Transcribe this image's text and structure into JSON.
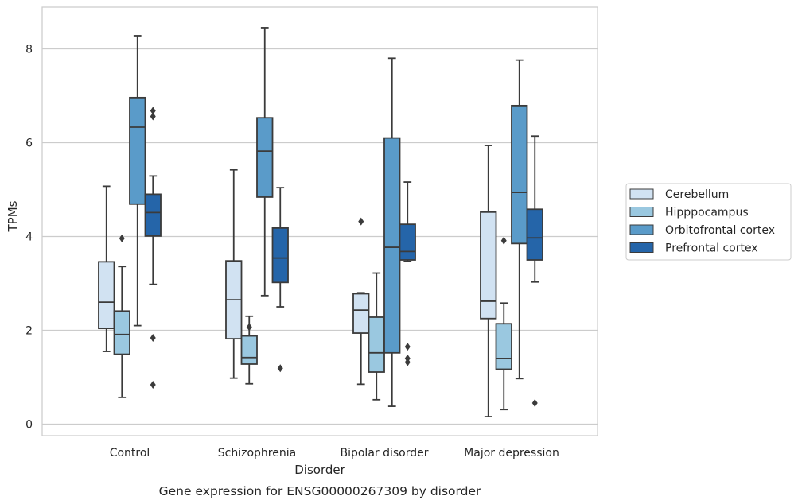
{
  "chart_data": {
    "type": "box",
    "caption": "Gene expression for ENSG00000267309 by disorder",
    "xlabel": "Disorder",
    "ylabel": "TPMs",
    "ylim": [
      -0.25,
      8.9
    ],
    "yticks": [
      0,
      2,
      4,
      6,
      8
    ],
    "grid": "horizontal",
    "legend_position": "right",
    "categories": [
      "Control",
      "Schizophrenia",
      "Bipolar disorder",
      "Major depression"
    ],
    "series": [
      {
        "name": "Cerebellum",
        "color": "#d1e2f2",
        "boxes": [
          {
            "whisker_low": 1.55,
            "q1": 2.04,
            "median": 2.6,
            "q3": 3.46,
            "whisker_high": 5.07,
            "outliers": []
          },
          {
            "whisker_low": 0.98,
            "q1": 1.82,
            "median": 2.65,
            "q3": 3.48,
            "whisker_high": 5.42,
            "outliers": []
          },
          {
            "whisker_low": 0.85,
            "q1": 1.94,
            "median": 2.43,
            "q3": 2.78,
            "whisker_high": 2.8,
            "outliers": [
              4.32
            ]
          },
          {
            "whisker_low": 0.16,
            "q1": 2.25,
            "median": 2.62,
            "q3": 4.52,
            "whisker_high": 5.94,
            "outliers": []
          }
        ]
      },
      {
        "name": "Hipppocampus",
        "color": "#9ac8e0",
        "boxes": [
          {
            "whisker_low": 0.57,
            "q1": 1.49,
            "median": 1.91,
            "q3": 2.41,
            "whisker_high": 3.36,
            "outliers": [
              3.96
            ]
          },
          {
            "whisker_low": 0.86,
            "q1": 1.28,
            "median": 1.42,
            "q3": 1.88,
            "whisker_high": 2.3,
            "outliers": [
              2.07
            ]
          },
          {
            "whisker_low": 0.52,
            "q1": 1.11,
            "median": 1.52,
            "q3": 2.28,
            "whisker_high": 3.22,
            "outliers": []
          },
          {
            "whisker_low": 0.31,
            "q1": 1.17,
            "median": 1.4,
            "q3": 2.14,
            "whisker_high": 2.58,
            "outliers": [
              3.91
            ]
          }
        ]
      },
      {
        "name": "Orbitofrontal cortex",
        "color": "#5a9bc9",
        "boxes": [
          {
            "whisker_low": 2.1,
            "q1": 4.69,
            "median": 6.33,
            "q3": 6.96,
            "whisker_high": 8.28,
            "outliers": []
          },
          {
            "whisker_low": 2.74,
            "q1": 4.84,
            "median": 5.82,
            "q3": 6.53,
            "whisker_high": 8.45,
            "outliers": []
          },
          {
            "whisker_low": 0.38,
            "q1": 1.52,
            "median": 3.77,
            "q3": 6.1,
            "whisker_high": 7.8,
            "outliers": []
          },
          {
            "whisker_low": 0.97,
            "q1": 3.85,
            "median": 4.94,
            "q3": 6.79,
            "whisker_high": 7.76,
            "outliers": []
          }
        ]
      },
      {
        "name": "Prefrontal cortex",
        "color": "#2565a9",
        "boxes": [
          {
            "whisker_low": 2.98,
            "q1": 4.01,
            "median": 4.51,
            "q3": 4.9,
            "whisker_high": 5.29,
            "outliers": [
              6.68,
              6.56,
              1.84,
              0.84
            ]
          },
          {
            "whisker_low": 2.5,
            "q1": 3.02,
            "median": 3.54,
            "q3": 4.18,
            "whisker_high": 5.04,
            "outliers": [
              1.19
            ]
          },
          {
            "whisker_low": 3.47,
            "q1": 3.5,
            "median": 3.68,
            "q3": 4.26,
            "whisker_high": 5.16,
            "outliers": [
              1.65,
              1.4,
              1.32
            ]
          },
          {
            "whisker_low": 3.03,
            "q1": 3.5,
            "median": 3.97,
            "q3": 4.58,
            "whisker_high": 6.14,
            "outliers": [
              0.45
            ]
          }
        ]
      }
    ]
  }
}
